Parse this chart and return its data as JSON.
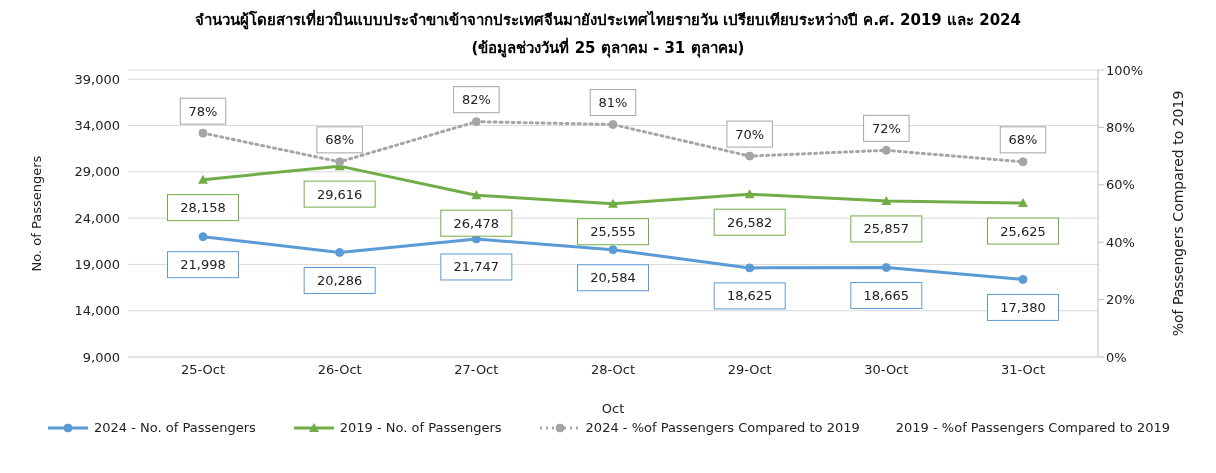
{
  "chart_data": {
    "type": "line",
    "title": "จำนวนผู้โดยสารเที่ยวบินแบบประจำขาเข้าจากประเทศจีนมายังประเทศไทยรายวัน  เปรียบเทียบระหว่างปี  ค.ศ. 2019 และ 2024",
    "subtitle": "(ข้อมูลช่วงวันที่ 25 ตุลาคม - 31 ตุลาคม)",
    "xlabel": "Oct",
    "ylabel": "No. of Passengers",
    "y2label": "%of Passengers Compared to 2019",
    "categories": [
      "25-Oct",
      "26-Oct",
      "27-Oct",
      "28-Oct",
      "29-Oct",
      "30-Oct",
      "31-Oct"
    ],
    "ylim": [
      9000,
      40000
    ],
    "yticks": [
      {
        "value": 9000,
        "label": "9,000"
      },
      {
        "value": 14000,
        "label": "14,000"
      },
      {
        "value": 19000,
        "label": "19,000"
      },
      {
        "value": 24000,
        "label": "24,000"
      },
      {
        "value": 29000,
        "label": "29,000"
      },
      {
        "value": 34000,
        "label": "34,000"
      },
      {
        "value": 39000,
        "label": "39,000"
      }
    ],
    "y2lim": [
      0,
      100
    ],
    "y2ticks": [
      {
        "value": 0,
        "label": "0%"
      },
      {
        "value": 20,
        "label": "20%"
      },
      {
        "value": 40,
        "label": "40%"
      },
      {
        "value": 60,
        "label": "60%"
      },
      {
        "value": 80,
        "label": "80%"
      },
      {
        "value": 100,
        "label": "100%"
      }
    ],
    "grid": "y",
    "legend": "bottom",
    "series": [
      {
        "name": "2024 - No. of Passengers",
        "color": "#5b9bd5",
        "marker": "circle",
        "line_style": "solid",
        "values": [
          21998,
          20286,
          21747,
          20584,
          18625,
          18665,
          17380
        ],
        "value_labels": [
          "21,998",
          "20,286",
          "21,747",
          "20,584",
          "18,625",
          "18,665",
          "17,380"
        ]
      },
      {
        "name": "2019 - No. of Passengers",
        "color": "#70ad47",
        "marker": "triangle",
        "line_style": "solid",
        "values": [
          28158,
          29616,
          26478,
          25555,
          26582,
          25857,
          25625
        ],
        "value_labels": [
          "28,158",
          "29,616",
          "26,478",
          "25,555",
          "26,582",
          "25,857",
          "25,625"
        ]
      },
      {
        "name": "2024 - %of Passengers Compared to 2019",
        "color": "#a5a5a5",
        "marker": "circle",
        "line_style": "dotted",
        "axis": "y2",
        "values": [
          78,
          68,
          82,
          81,
          70,
          72,
          68
        ],
        "value_labels": [
          "78%",
          "68%",
          "82%",
          "81%",
          "70%",
          "72%",
          "68%"
        ]
      },
      {
        "name": "2019 - %of Passengers Compared to 2019",
        "marker": "none",
        "line_style": "solid",
        "axis": "y2",
        "values": [
          null,
          null,
          null,
          null,
          null,
          null,
          null
        ]
      }
    ]
  }
}
